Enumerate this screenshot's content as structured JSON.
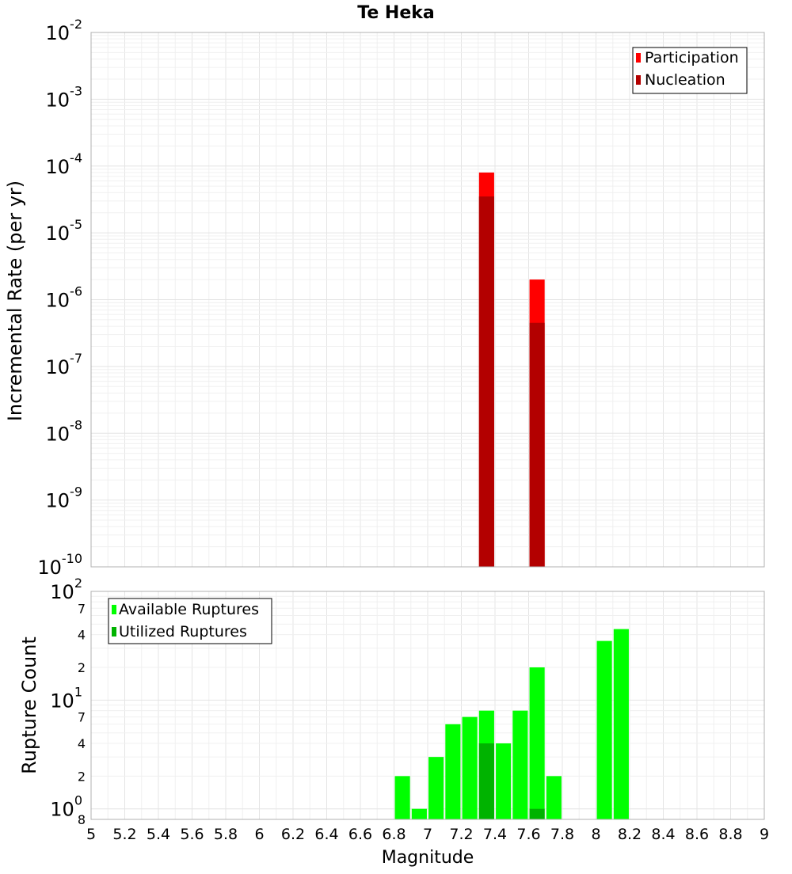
{
  "chart_data": [
    {
      "type": "bar",
      "title": "Te Heka",
      "ylabel": "Incremental Rate (per yr)",
      "xlabel": "",
      "y_scale": "log",
      "xlim": [
        5,
        9
      ],
      "ylim": [
        1e-10,
        0.01
      ],
      "y_tick_exponents": [
        -2,
        -3,
        -4,
        -5,
        -6,
        -7,
        -8,
        -9,
        -10
      ],
      "grid": true,
      "legend_position": "top-right",
      "bar_width": 0.09,
      "series": [
        {
          "name": "Participation",
          "color": "#ff0000",
          "points": [
            {
              "x": 7.35,
              "y": 8e-05
            },
            {
              "x": 7.65,
              "y": 2e-06
            }
          ]
        },
        {
          "name": "Nucleation",
          "color": "#b30000",
          "points": [
            {
              "x": 7.35,
              "y": 3.5e-05
            },
            {
              "x": 7.65,
              "y": 4.5e-07
            }
          ]
        }
      ]
    },
    {
      "type": "bar",
      "title": "",
      "xlabel": "Magnitude",
      "ylabel": "Rupture Count",
      "y_scale": "log",
      "xlim": [
        5,
        9
      ],
      "ylim": [
        0.8,
        100
      ],
      "x_ticks": [
        "5",
        "5.2",
        "5.4",
        "5.6",
        "5.8",
        "6",
        "6.2",
        "6.4",
        "6.6",
        "6.8",
        "7",
        "7.2",
        "7.4",
        "7.6",
        "7.8",
        "8",
        "8.2",
        "8.4",
        "8.6",
        "8.8",
        "9"
      ],
      "y_major_ticks": [
        {
          "base": "10",
          "exp": "2",
          "value": 100
        },
        {
          "base": "10",
          "exp": "1",
          "value": 10
        },
        {
          "base": "10",
          "exp": "0",
          "value": 1
        }
      ],
      "y_minor_ticks": [
        {
          "label": "7",
          "value": 70
        },
        {
          "label": "4",
          "value": 40
        },
        {
          "label": "2",
          "value": 20
        },
        {
          "label": "7",
          "value": 7
        },
        {
          "label": "4",
          "value": 4
        },
        {
          "label": "2",
          "value": 2
        },
        {
          "label": "8",
          "value": 0.8
        }
      ],
      "grid": true,
      "legend_position": "top-left",
      "bar_width": 0.09,
      "series": [
        {
          "name": "Available Ruptures",
          "color": "#00ff00",
          "points": [
            {
              "x": 6.85,
              "y": 2
            },
            {
              "x": 6.95,
              "y": 1
            },
            {
              "x": 7.05,
              "y": 3
            },
            {
              "x": 7.15,
              "y": 6
            },
            {
              "x": 7.25,
              "y": 7
            },
            {
              "x": 7.35,
              "y": 8
            },
            {
              "x": 7.45,
              "y": 4
            },
            {
              "x": 7.55,
              "y": 8
            },
            {
              "x": 7.65,
              "y": 20
            },
            {
              "x": 7.75,
              "y": 2
            },
            {
              "x": 8.05,
              "y": 35
            },
            {
              "x": 8.15,
              "y": 45
            }
          ]
        },
        {
          "name": "Utilized Ruptures",
          "color": "#00b300",
          "points": [
            {
              "x": 7.35,
              "y": 4
            },
            {
              "x": 7.65,
              "y": 1
            }
          ]
        }
      ]
    }
  ]
}
